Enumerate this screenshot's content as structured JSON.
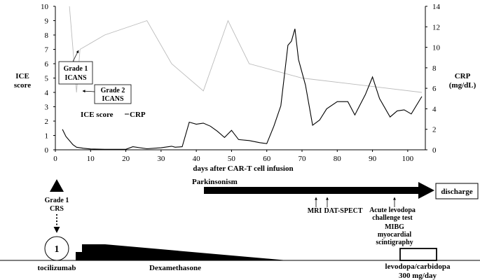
{
  "chart_data": {
    "type": "line",
    "title": "",
    "xlabel": "days after CAR-T cell infusion",
    "ylabel_left": "ICE score",
    "ylabel_right": "CRP (mg/dL)",
    "xlim": [
      0,
      105
    ],
    "ylim_left": [
      0,
      10
    ],
    "ylim_right": [
      0,
      14
    ],
    "x_ticks": [
      0,
      10,
      20,
      30,
      40,
      50,
      60,
      70,
      80,
      90,
      100
    ],
    "y_left_ticks": [
      0,
      1,
      2,
      3,
      4,
      5,
      6,
      7,
      8,
      9,
      10
    ],
    "y_right_ticks": [
      0,
      2,
      4,
      6,
      8,
      10,
      12,
      14
    ],
    "grid": false,
    "legend": {
      "placement": "middle-left",
      "entries": [
        "ICE score",
        "CRP"
      ]
    },
    "series": [
      {
        "name": "ICE score",
        "axis": "left",
        "color": "#bbbbbb",
        "x": [
          4,
          6,
          7,
          14,
          26,
          33,
          42,
          49,
          55,
          70,
          104
        ],
        "y": [
          10,
          4,
          7,
          8,
          9,
          6,
          4.1,
          9,
          6,
          5,
          4
        ]
      },
      {
        "name": "CRP",
        "axis": "right",
        "color": "#000000",
        "x": [
          2,
          3,
          5,
          6,
          8,
          10,
          14,
          20,
          22,
          26,
          30,
          33,
          34,
          36,
          38,
          40,
          42,
          44,
          46,
          48,
          50,
          52,
          55,
          58,
          60,
          62,
          64,
          66,
          67,
          68,
          69,
          71,
          73,
          75,
          77,
          80,
          83,
          85,
          88,
          90,
          92,
          95,
          97,
          99,
          101,
          104
        ],
        "y": [
          2.0,
          1.3,
          0.5,
          0.25,
          0.15,
          0.08,
          0.05,
          0.05,
          0.3,
          0.1,
          0.2,
          0.35,
          0.25,
          0.3,
          2.7,
          2.5,
          2.6,
          2.3,
          1.8,
          1.2,
          1.9,
          1.0,
          0.9,
          0.7,
          0.6,
          2.3,
          4.3,
          10.2,
          10.6,
          11.8,
          8.8,
          6.3,
          2.4,
          2.9,
          4.0,
          4.7,
          4.7,
          3.4,
          5.4,
          7.1,
          5.0,
          3.2,
          3.8,
          3.9,
          3.5,
          5.2
        ]
      }
    ],
    "annotations": [
      {
        "id": "grade1-icans",
        "lines": [
          "Grade 1",
          "ICANS"
        ]
      },
      {
        "id": "grade2-icans",
        "lines": [
          "Grade 2",
          "ICANS"
        ]
      }
    ]
  },
  "timeline": {
    "parkinsonism_label": "Parkinsonism",
    "discharge_label": "discharge",
    "events": [
      {
        "id": "mri",
        "day": 73,
        "label": "MRI"
      },
      {
        "id": "dat-spect",
        "day": 76,
        "label": "DAT-SPECT"
      },
      {
        "id": "levodopa-test",
        "day": 95,
        "label": "Acute levodopa challenge test"
      }
    ],
    "crs_label": [
      "Grade 1",
      "CRS"
    ],
    "tocilizumab_dose": "1",
    "tocilizumab_label": "tocilizumab",
    "dexamethasone_label": "Dexamethasone",
    "mibg_label": [
      "MIBG",
      "myocardial",
      "scintigraphy"
    ],
    "levodopa_label": [
      "levodopa/carbidopa",
      "300 mg/day"
    ],
    "levodopa_test_lines": [
      "Acute levodopa",
      "challenge test"
    ]
  }
}
